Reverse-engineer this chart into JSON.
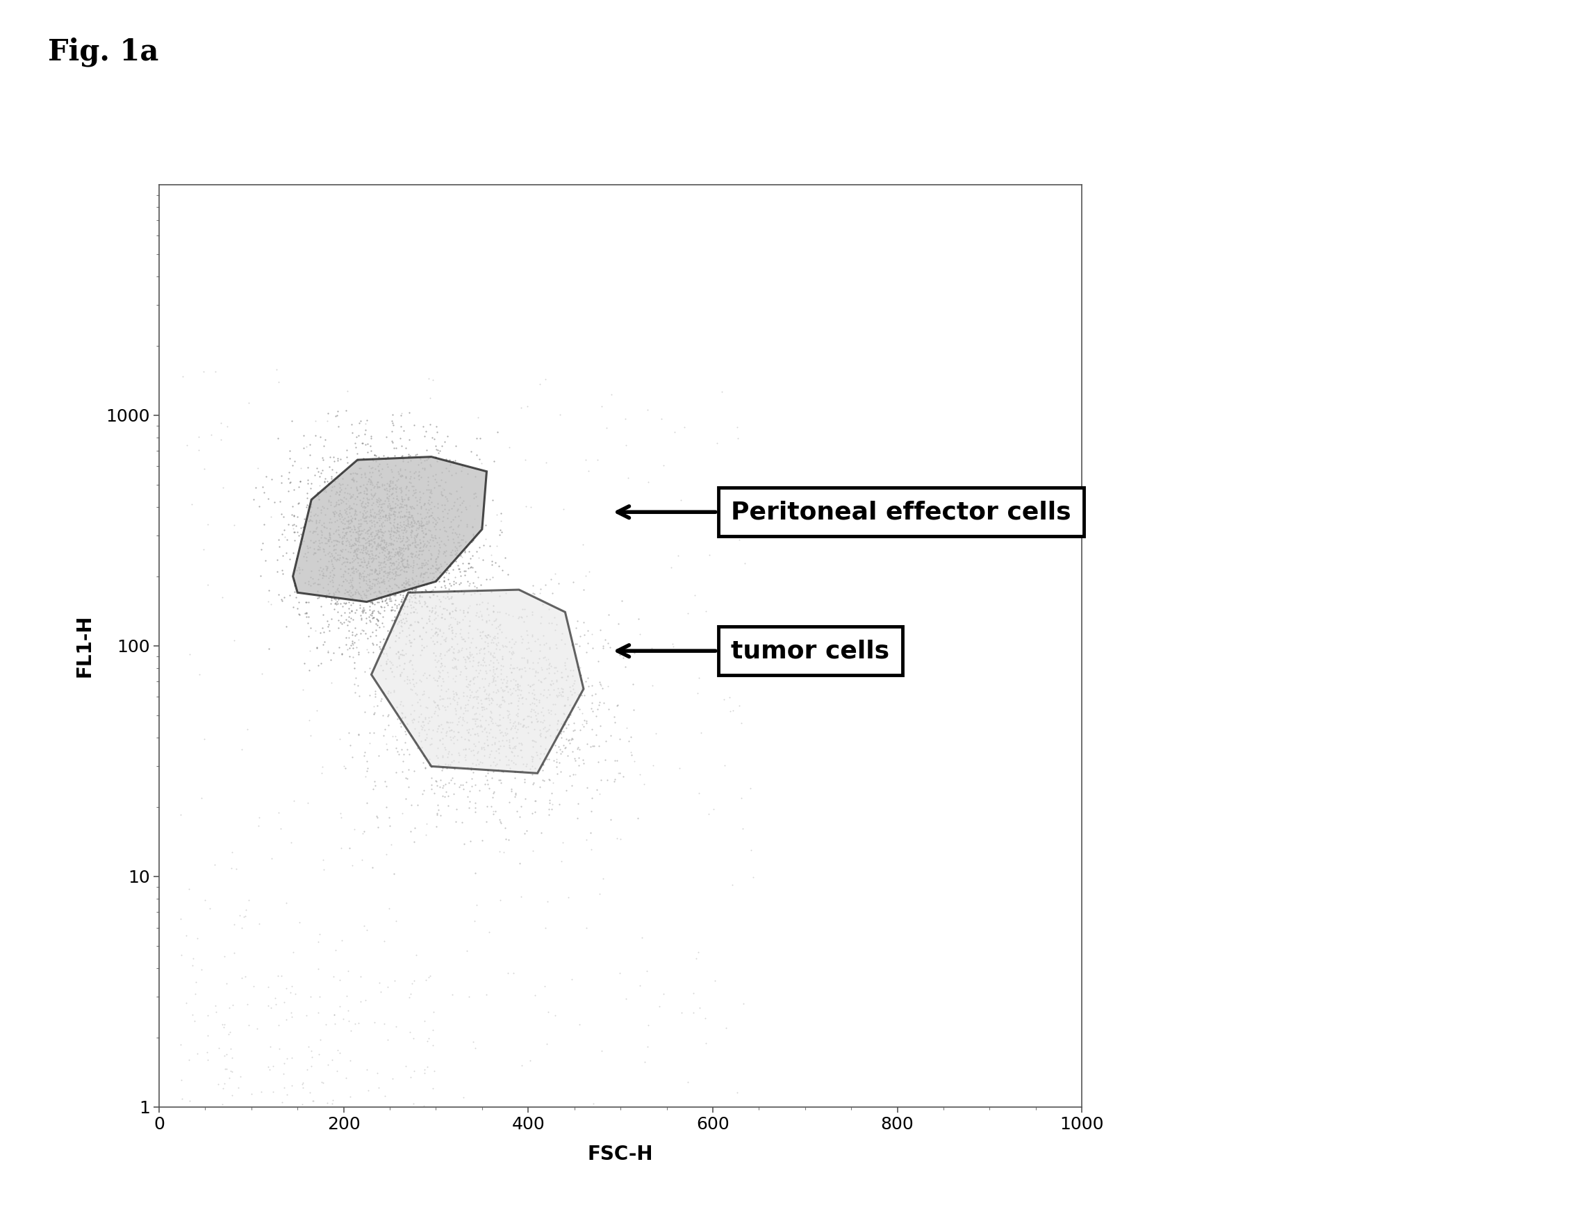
{
  "fig_label": "Fig. 1a",
  "xlabel": "FSC-H",
  "ylabel": "FL1-H",
  "background_color": "#ffffff",
  "plot_bg_color": "#ffffff",
  "label_fontsize": 20,
  "tick_fontsize": 18,
  "xmin": 0,
  "xmax": 1000,
  "ymin": 1,
  "ymax": 10000,
  "yticks": [
    1,
    10,
    100,
    1000
  ],
  "ytick_labels": [
    "1",
    "10",
    "100",
    "1000"
  ],
  "xticks": [
    0,
    200,
    400,
    600,
    800,
    1000
  ],
  "annotation1_text": "Peritoneal effector cells",
  "annotation2_text": "tumor cells",
  "scatter_color": "#888888",
  "gate_edge_color": "#111111",
  "effector_fill_color": "#c0c0c0",
  "tumor_fill_color": "#e8e8e8"
}
